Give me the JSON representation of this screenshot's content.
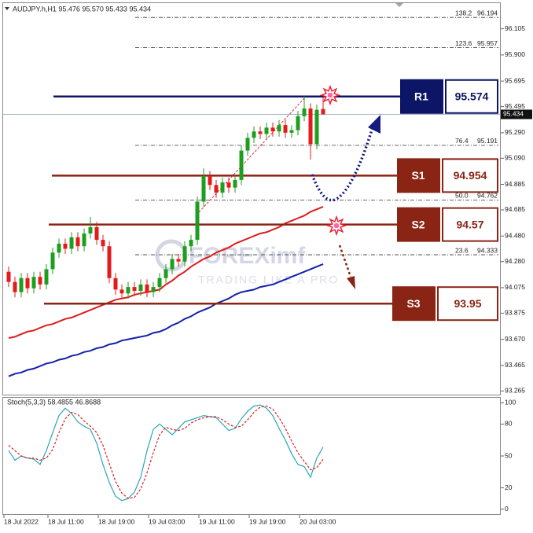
{
  "chart_data": [
    {
      "type": "candlestick",
      "title": "AUDJPY.h,H1  95.476 95.570 95.433 95.434",
      "categories": [
        "18 Jul 2022",
        null,
        null,
        null,
        null,
        null,
        null,
        "18 Jul 11:00",
        null,
        null,
        null,
        null,
        null,
        null,
        null,
        "18 Jul 19:00",
        null,
        null,
        null,
        null,
        null,
        null,
        null,
        "19 Jul 03:00",
        null,
        null,
        null,
        null,
        null,
        null,
        null,
        "19 Jul 11:00",
        null,
        null,
        null,
        null,
        null,
        null,
        null,
        "19 Jul 19:00",
        null,
        null,
        null,
        null,
        null,
        null,
        null,
        "20 Jul 03:00",
        null,
        null,
        null
      ],
      "open": [
        94.2,
        94.12,
        94.04,
        94.15,
        94.07,
        94.16,
        94.1,
        94.22,
        94.35,
        94.42,
        94.38,
        94.47,
        94.4,
        94.5,
        94.55,
        94.45,
        94.4,
        94.15,
        94.06,
        94.03,
        94.08,
        94.05,
        94.1,
        94.04,
        94.08,
        94.15,
        94.22,
        94.3,
        94.28,
        94.4,
        94.45,
        94.75,
        94.95,
        94.88,
        94.82,
        94.9,
        94.86,
        94.92,
        95.15,
        95.25,
        95.3,
        95.28,
        95.33,
        95.3,
        95.35,
        95.29,
        95.31,
        95.42,
        95.48,
        95.2,
        95.476
      ],
      "high": [
        94.24,
        94.16,
        94.19,
        94.19,
        94.2,
        94.2,
        94.26,
        94.39,
        94.46,
        94.46,
        94.51,
        94.51,
        94.54,
        94.63,
        94.59,
        94.49,
        94.44,
        94.19,
        94.1,
        94.12,
        94.12,
        94.14,
        94.14,
        94.12,
        94.19,
        94.26,
        94.34,
        94.34,
        94.44,
        94.49,
        94.79,
        95.01,
        94.99,
        94.92,
        94.94,
        94.94,
        94.96,
        95.19,
        95.29,
        95.34,
        95.34,
        95.37,
        95.37,
        95.39,
        95.39,
        95.35,
        95.46,
        95.574,
        95.52,
        95.51,
        95.57
      ],
      "low": [
        94.08,
        94.0,
        94.0,
        94.03,
        94.03,
        94.06,
        94.06,
        94.18,
        94.31,
        94.34,
        94.34,
        94.36,
        94.36,
        94.46,
        94.41,
        94.36,
        94.11,
        94.02,
        93.99,
        93.99,
        94.01,
        94.01,
        94.0,
        94.0,
        94.04,
        94.11,
        94.18,
        94.24,
        94.24,
        94.36,
        94.41,
        94.71,
        94.84,
        94.78,
        94.78,
        94.82,
        94.82,
        94.88,
        95.11,
        95.21,
        95.24,
        95.24,
        95.26,
        95.26,
        95.25,
        95.25,
        95.27,
        95.38,
        95.08,
        95.16,
        95.433
      ],
      "close": [
        94.12,
        94.04,
        94.15,
        94.07,
        94.16,
        94.1,
        94.22,
        94.35,
        94.42,
        94.38,
        94.47,
        94.4,
        94.5,
        94.55,
        94.45,
        94.4,
        94.15,
        94.06,
        94.03,
        94.08,
        94.05,
        94.1,
        94.04,
        94.08,
        94.15,
        94.22,
        94.3,
        94.28,
        94.4,
        94.45,
        94.75,
        94.95,
        94.88,
        94.82,
        94.9,
        94.86,
        94.92,
        95.15,
        95.25,
        95.3,
        95.28,
        95.33,
        95.3,
        95.35,
        95.29,
        95.31,
        95.42,
        95.48,
        95.2,
        95.47,
        95.434
      ],
      "up_color": "#1e9e1e",
      "down_color": "#e31b1b",
      "ylim": [
        93.23,
        96.3
      ],
      "yticks": [
        96.105,
        {
          "value": 95.9,
          "label": "95.900"
        },
        95.695,
        95.495,
        {
          "value": 95.29,
          "label": "95.290"
        },
        {
          "value": 95.09,
          "label": "95.090"
        },
        94.885,
        94.685,
        {
          "value": 94.48,
          "label": "94.480"
        },
        {
          "value": 94.28,
          "label": "94.280"
        },
        94.075,
        93.875,
        {
          "value": 93.67,
          "label": "93.670"
        },
        93.465,
        93.265
      ],
      "grid": false,
      "last_price": 95.434,
      "moving_averages": [
        {
          "color": "#e01b1b",
          "values": [
            93.68,
            93.69,
            93.71,
            93.73,
            93.74,
            93.76,
            93.78,
            93.79,
            93.81,
            93.83,
            93.84,
            93.86,
            93.88,
            93.9,
            93.92,
            93.94,
            93.96,
            93.98,
            93.99,
            94.0,
            94.02,
            94.03,
            94.04,
            94.05,
            94.06,
            94.1,
            94.13,
            94.17,
            94.2,
            94.24,
            94.27,
            94.3,
            94.32,
            94.35,
            94.37,
            94.39,
            94.42,
            94.44,
            94.46,
            94.48,
            94.5,
            94.51,
            94.53,
            94.55,
            94.58,
            94.6,
            94.62,
            94.64,
            94.67,
            94.69,
            94.71
          ]
        },
        {
          "color": "#1420a8",
          "values": [
            93.38,
            93.4,
            93.41,
            93.43,
            93.44,
            93.46,
            93.48,
            93.49,
            93.51,
            93.52,
            93.54,
            93.55,
            93.57,
            93.58,
            93.6,
            93.61,
            93.63,
            93.64,
            93.66,
            93.67,
            93.68,
            93.69,
            93.7,
            93.72,
            93.73,
            93.75,
            93.78,
            93.8,
            93.83,
            93.85,
            93.88,
            93.9,
            93.92,
            93.95,
            93.97,
            93.99,
            94.02,
            94.04,
            94.05,
            94.06,
            94.08,
            94.09,
            94.1,
            94.12,
            94.14,
            94.16,
            94.18,
            94.2,
            94.22,
            94.24,
            94.26
          ]
        }
      ],
      "fibonacci": [
        {
          "label": "138.2",
          "value": 96.194
        },
        {
          "label": "123.6",
          "value": 95.957
        },
        {
          "label": "76.4",
          "value": 95.191
        },
        {
          "label": "50.0",
          "value": 94.762
        },
        {
          "label": "23.6",
          "value": 94.333
        }
      ],
      "levels": [
        {
          "name": "R1",
          "value": 95.574,
          "color": "#0c1566"
        },
        {
          "name": "S1",
          "value": 94.954,
          "color": "#8a2414"
        },
        {
          "name": "S2",
          "value": 94.57,
          "color": "#8a2414"
        },
        {
          "name": "S3",
          "value": 93.95,
          "color": "#8a2414"
        }
      ],
      "watermark": {
        "brand": "FOREXimf",
        "tagline": "TRADING LIKE A PRO"
      }
    },
    {
      "type": "line",
      "title": "Stoch(5,3,3) 58.4855 46.8688",
      "series": [
        {
          "color": "#2aa6b8",
          "values": [
            55,
            46,
            50,
            48,
            47,
            42,
            55,
            72,
            88,
            95,
            90,
            82,
            78,
            75,
            62,
            42,
            25,
            12,
            8,
            10,
            16,
            30,
            55,
            75,
            80,
            75,
            70,
            76,
            82,
            84,
            86,
            88,
            87,
            86,
            80,
            74,
            76,
            85,
            92,
            97,
            98,
            95,
            88,
            76,
            65,
            52,
            42,
            40,
            30,
            48,
            58.49
          ]
        },
        {
          "color": "#e01b1b",
          "dashed": true,
          "values": [
            60,
            55,
            50,
            48,
            48,
            46,
            48,
            56,
            72,
            85,
            91,
            89,
            83,
            78,
            72,
            60,
            43,
            26,
            15,
            10,
            11,
            19,
            34,
            53,
            70,
            77,
            75,
            74,
            76,
            81,
            84,
            86,
            87,
            87,
            84,
            80,
            77,
            78,
            84,
            91,
            96,
            97,
            94,
            86,
            76,
            64,
            53,
            45,
            37,
            39,
            46.87
          ]
        }
      ],
      "ylim": [
        -4,
        104
      ],
      "yticks": [
        0,
        20,
        50,
        80,
        100
      ],
      "grid": false
    }
  ]
}
